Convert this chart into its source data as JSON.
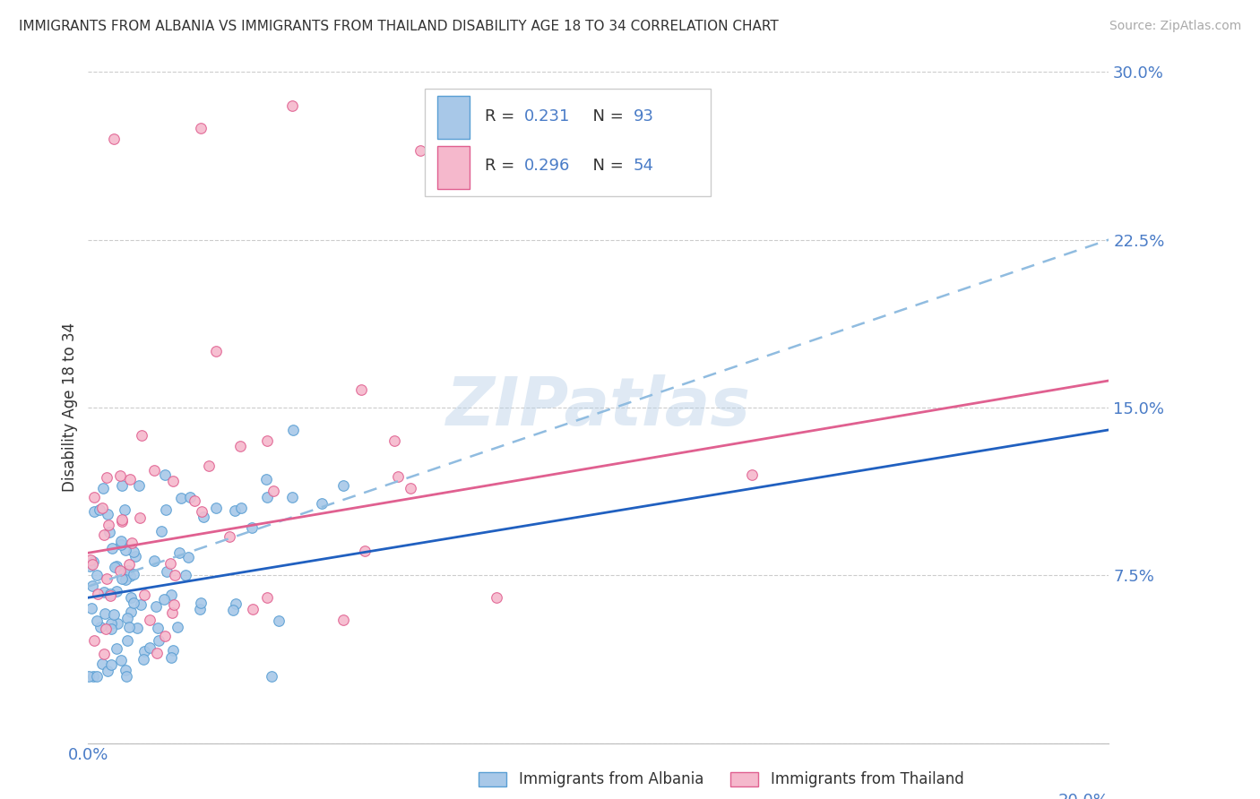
{
  "title": "IMMIGRANTS FROM ALBANIA VS IMMIGRANTS FROM THAILAND DISABILITY AGE 18 TO 34 CORRELATION CHART",
  "source": "Source: ZipAtlas.com",
  "ylabel": "Disability Age 18 to 34",
  "xlim": [
    0.0,
    0.2
  ],
  "ylim": [
    0.0,
    0.3
  ],
  "ytick_vals": [
    0.0,
    0.075,
    0.15,
    0.225,
    0.3
  ],
  "ytick_labels": [
    "",
    "7.5%",
    "15.0%",
    "22.5%",
    "30.0%"
  ],
  "albania_fill": "#a8c8e8",
  "albania_edge": "#5a9fd4",
  "thailand_fill": "#f5b8cc",
  "thailand_edge": "#e06090",
  "albania_R": 0.231,
  "albania_N": 93,
  "thailand_R": 0.296,
  "thailand_N": 54,
  "trend_albania_color": "#2060c0",
  "trend_thailand_color": "#e06090",
  "trend_dashed_color": "#90bce0",
  "watermark": "ZIPatlas",
  "background_color": "#ffffff",
  "dot_size": 70,
  "grid_color": "#cccccc",
  "tick_color": "#4a7cc7",
  "title_color": "#333333",
  "source_color": "#aaaaaa"
}
